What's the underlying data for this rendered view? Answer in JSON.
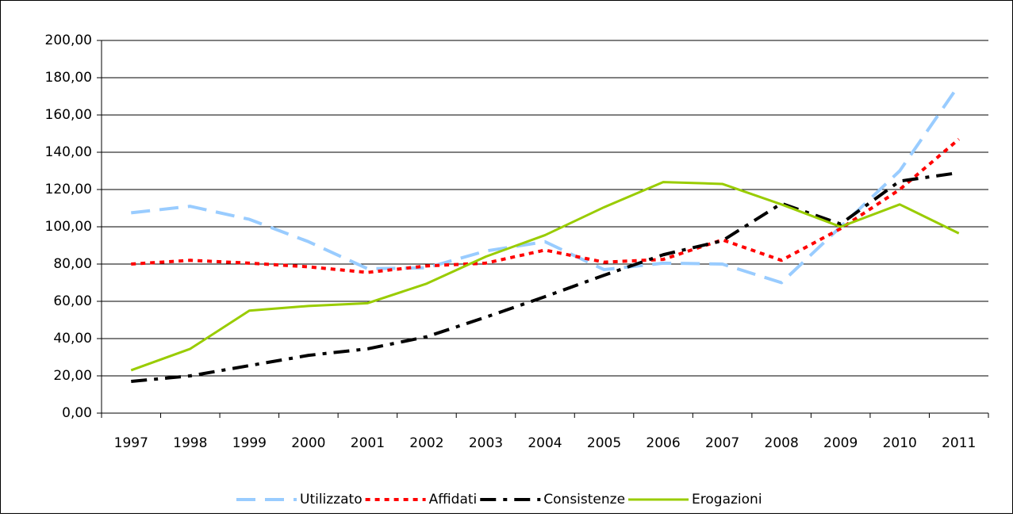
{
  "chart_data": {
    "type": "line",
    "categories": [
      "1997",
      "1998",
      "1999",
      "2000",
      "2001",
      "2002",
      "2003",
      "2004",
      "2005",
      "2006",
      "2007",
      "2008",
      "2009",
      "2010",
      "2011"
    ],
    "series": [
      {
        "name": "Utilizzato",
        "color": "#99ccff",
        "values": [
          107.5,
          111,
          104,
          92,
          77.5,
          78,
          87,
          92,
          77,
          80.5,
          80,
          70,
          100,
          130,
          176
        ]
      },
      {
        "name": "Affidati",
        "color": "#ff0000",
        "values": [
          80,
          82,
          80.5,
          78.5,
          75.5,
          79,
          80.5,
          87.5,
          81,
          82.5,
          93,
          82,
          99,
          120,
          147
        ]
      },
      {
        "name": "Consistenze",
        "color": "#000000",
        "values": [
          17,
          20,
          25.5,
          31,
          34.5,
          41,
          51.5,
          62.5,
          74,
          85,
          92.5,
          112.5,
          101.5,
          124.5,
          129
        ]
      },
      {
        "name": "Erogazioni",
        "color": "#99cc00",
        "values": [
          23,
          34.5,
          55,
          57.5,
          59,
          69.5,
          84,
          95.5,
          110.5,
          124,
          123,
          112,
          100,
          112,
          96.5
        ]
      }
    ],
    "ylim": [
      0,
      200
    ],
    "yticks": [
      {
        "value": 0,
        "label": "0,00"
      },
      {
        "value": 20,
        "label": "20,00"
      },
      {
        "value": 40,
        "label": "40,00"
      },
      {
        "value": 60,
        "label": "60,00"
      },
      {
        "value": 80,
        "label": "80,00"
      },
      {
        "value": 100,
        "label": "100,00"
      },
      {
        "value": 120,
        "label": "120,00"
      },
      {
        "value": 140,
        "label": "140,00"
      },
      {
        "value": 160,
        "label": "160,00"
      },
      {
        "value": 180,
        "label": "180,00"
      },
      {
        "value": 200,
        "label": "200,00"
      }
    ],
    "grid": true,
    "legend": "bottom"
  }
}
